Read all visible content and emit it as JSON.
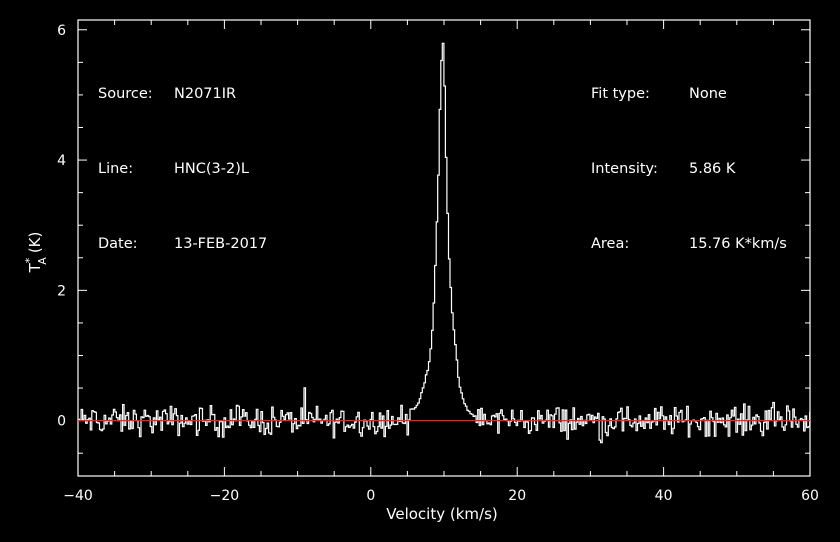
{
  "info_left": [
    {
      "key": "Source:",
      "value": "N2071IR"
    },
    {
      "key": "Line:",
      "value": "HNC(3-2)L"
    },
    {
      "key": "Date:",
      "value": "13-FEB-2017"
    }
  ],
  "info_right": [
    {
      "key": "Fit type:",
      "value": "None"
    },
    {
      "key": "Intensity:",
      "value": "5.86 K"
    },
    {
      "key": "Area:",
      "value": "15.76 K*km/s"
    }
  ],
  "colors": {
    "background": "#000000",
    "spectrum": "#ffffff",
    "baseline": "#ff2020",
    "axes": "#ffffff"
  },
  "chart_data": {
    "type": "line",
    "xlabel": "Velocity (km/s)",
    "ylabel_main": "T",
    "ylabel_super": "*",
    "ylabel_sub": "A",
    "ylabel_unit": "(K)",
    "xlim": [
      -40,
      60
    ],
    "ylim": [
      -0.85,
      6.15
    ],
    "x_ticks": [
      -40,
      -20,
      0,
      20,
      40,
      60
    ],
    "x_tick_labels": [
      "−40",
      "−20",
      "0",
      "20",
      "40",
      "60"
    ],
    "y_ticks": [
      0,
      2,
      4,
      6
    ],
    "y_tick_labels": [
      "0",
      "2",
      "4",
      "6"
    ],
    "baseline_value": 0,
    "line": {
      "profile_velocity_center": 9.8,
      "peak": 5.86,
      "velocity_resolution": 0.21
    },
    "series": [
      {
        "style": "step",
        "x": [
          -40.0,
          -38.0,
          -36.0,
          -34.0,
          -32.0,
          -30.0,
          -28.0,
          -26.0,
          -24.0,
          -22.0,
          -20.0,
          -18.0,
          -16.0,
          -14.0,
          -12.0,
          -10.0,
          -8.0,
          -6.0,
          -4.0,
          -2.0,
          0.0,
          2.0,
          4.0,
          5.0,
          6.0,
          6.5,
          7.0,
          7.5,
          8.0,
          8.3,
          8.6,
          8.9,
          9.2,
          9.4,
          9.6,
          9.8,
          10.0,
          10.2,
          10.4,
          10.7,
          11.0,
          11.3,
          11.6,
          12.0,
          12.4,
          12.8,
          13.2,
          13.6,
          14.0,
          15.0,
          16.0,
          18.0,
          20.0,
          22.0,
          24.0,
          26.0,
          28.0,
          30.0,
          32.0,
          34.0,
          36.0,
          38.0,
          40.0,
          42.0,
          44.0,
          46.0,
          48.0,
          50.0,
          52.0,
          54.0,
          56.0,
          58.0,
          60.0
        ],
        "y": [
          0.05,
          -0.12,
          0.15,
          -0.08,
          0.1,
          -0.15,
          0.08,
          0.12,
          -0.1,
          0.05,
          -0.06,
          0.14,
          -0.12,
          0.07,
          -0.05,
          0.1,
          -0.14,
          0.06,
          0.12,
          -0.08,
          0.04,
          -0.1,
          0.12,
          0.15,
          0.2,
          0.28,
          0.45,
          0.65,
          0.9,
          1.2,
          1.8,
          2.6,
          3.6,
          4.5,
          5.4,
          5.86,
          5.6,
          4.6,
          3.5,
          2.5,
          1.9,
          1.4,
          1.1,
          0.6,
          0.4,
          0.25,
          0.18,
          0.12,
          0.08,
          0.05,
          -0.04,
          0.1,
          -0.12,
          0.06,
          -0.1,
          0.12,
          -0.06,
          0.08,
          -0.14,
          0.1,
          -0.08,
          0.05,
          -0.12,
          0.14,
          -0.1,
          0.06,
          -0.15,
          0.1,
          -0.05,
          0.12,
          -0.1,
          0.06,
          0.02
        ]
      }
    ]
  }
}
